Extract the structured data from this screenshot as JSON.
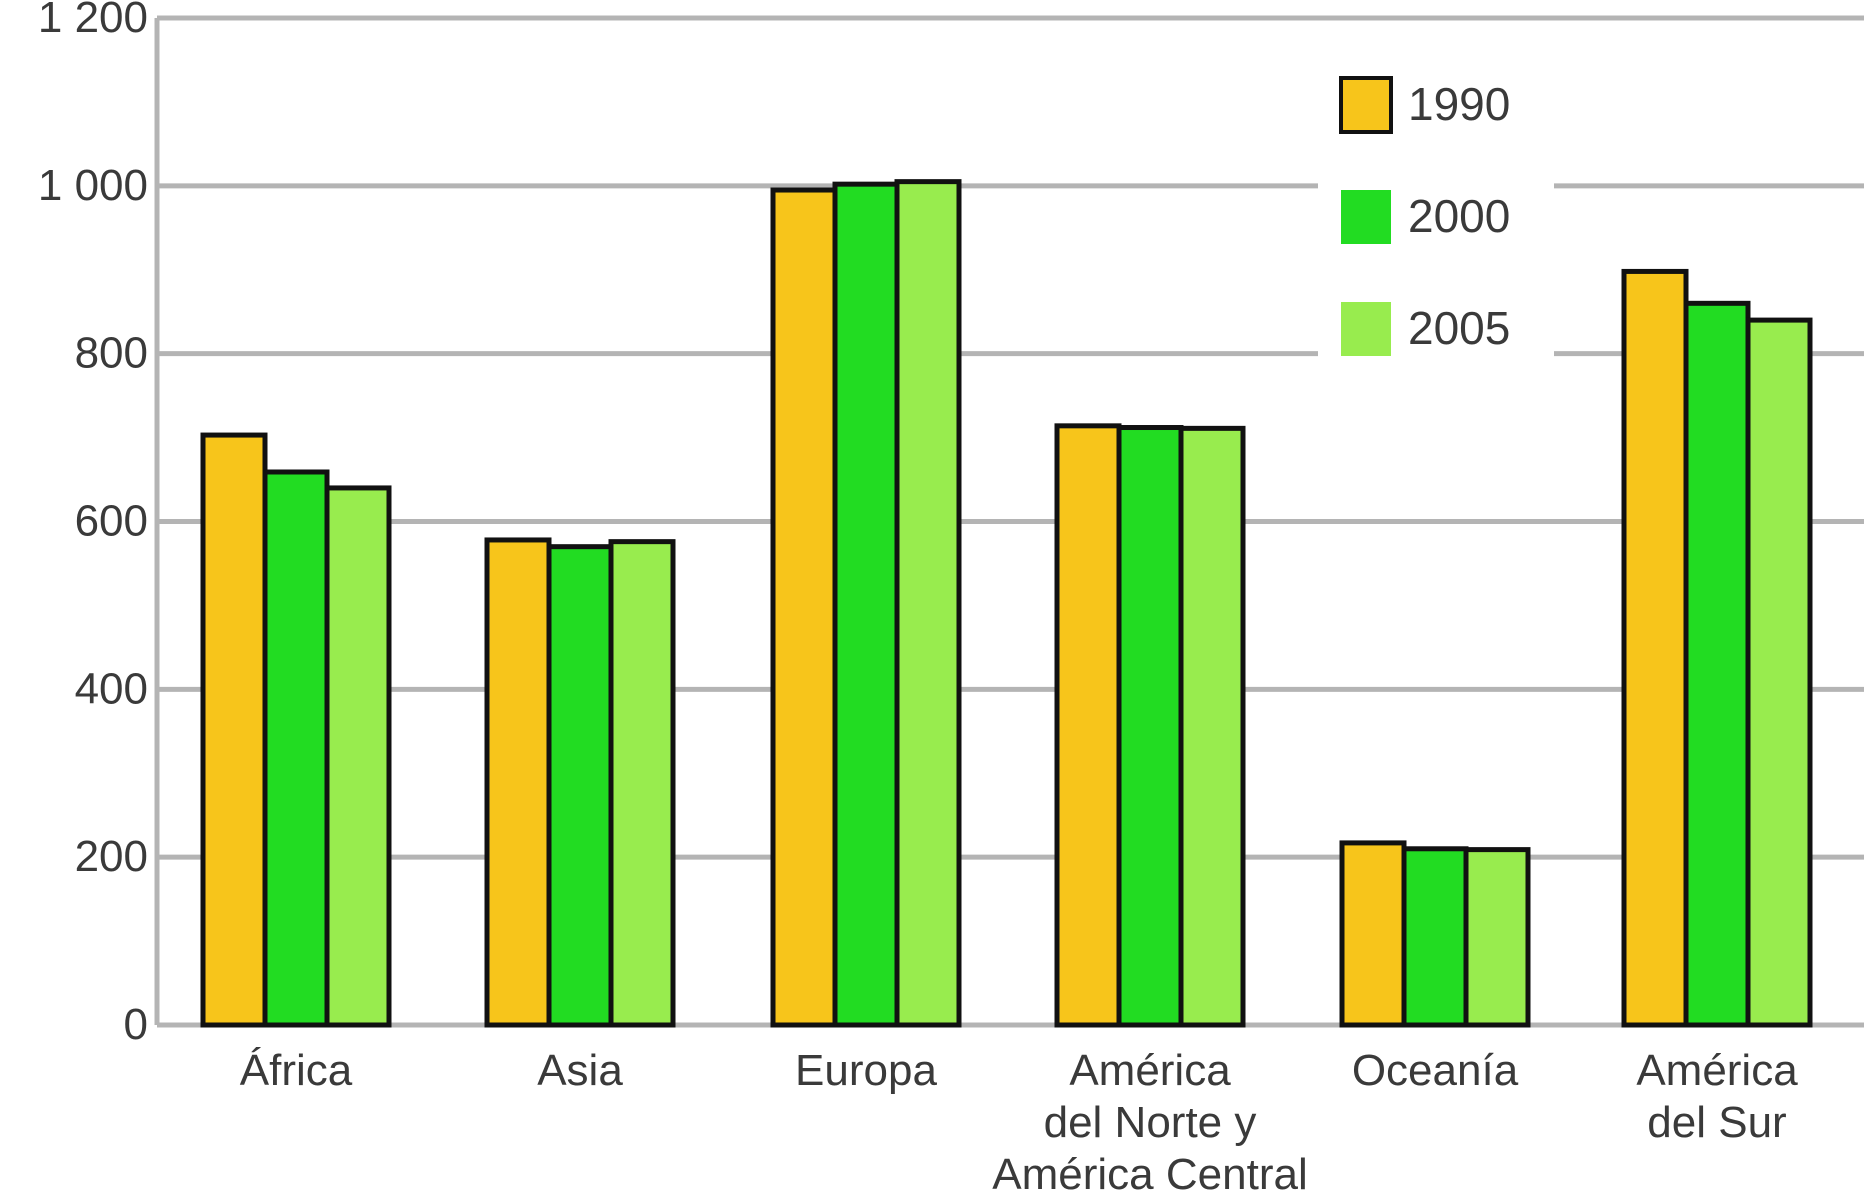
{
  "chart_data": {
    "type": "bar",
    "categories": [
      [
        "África"
      ],
      [
        "Asia"
      ],
      [
        "Europa"
      ],
      [
        "América",
        "del Norte y",
        "América Central"
      ],
      [
        "Oceanía"
      ],
      [
        "América",
        "del Sur"
      ]
    ],
    "series": [
      {
        "name": "1990",
        "color": "#F7C51B",
        "values": [
          703,
          578,
          995,
          714,
          217,
          898
        ]
      },
      {
        "name": "2000",
        "color": "#22DC22",
        "values": [
          659,
          570,
          1002,
          712,
          210,
          860
        ]
      },
      {
        "name": "2005",
        "color": "#98EC4E",
        "values": [
          640,
          576,
          1005,
          711,
          209,
          840
        ]
      }
    ],
    "ylim": [
      0,
      1200
    ],
    "yticks": [
      0,
      200,
      400,
      600,
      800,
      1000,
      1200
    ],
    "ytick_labels": [
      "0",
      "200",
      "400",
      "600",
      "800",
      "1 000",
      "1 200"
    ],
    "grid": true,
    "legend_position": "top-right",
    "title": "",
    "xlabel": "",
    "ylabel": ""
  }
}
